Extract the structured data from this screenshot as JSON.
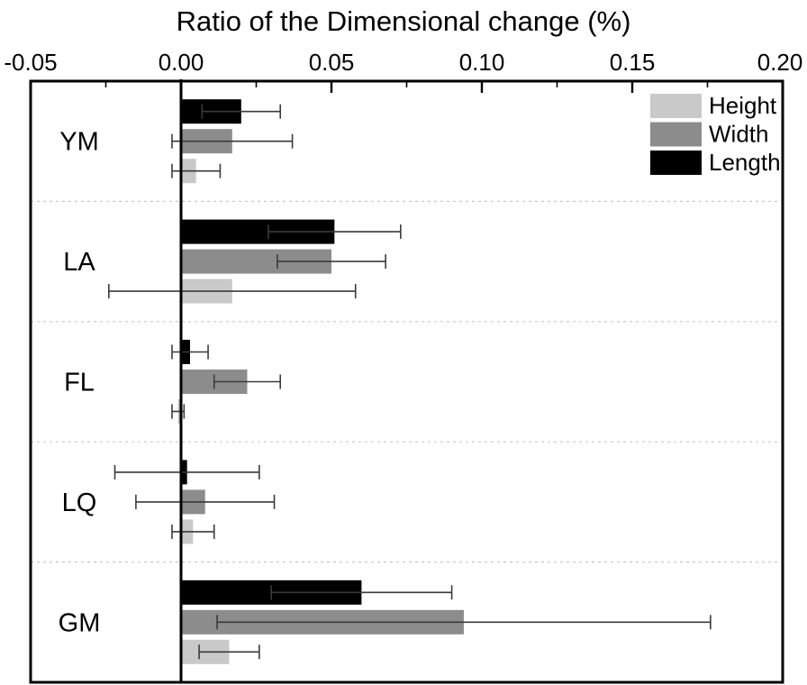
{
  "chart_data": {
    "type": "bar",
    "orientation": "horizontal",
    "title": "Ratio of the Dimensional change (%)",
    "categories": [
      "YM",
      "LA",
      "FL",
      "LQ",
      "GM"
    ],
    "series": [
      {
        "name": "Length",
        "color": "#000000",
        "values": [
          0.02,
          0.051,
          0.003,
          0.002,
          0.06
        ],
        "errors": [
          0.013,
          0.022,
          0.006,
          0.024,
          0.03
        ]
      },
      {
        "name": "Width",
        "color": "#8c8c8c",
        "values": [
          0.017,
          0.05,
          0.022,
          0.008,
          0.094
        ],
        "errors": [
          0.02,
          0.018,
          0.011,
          0.023,
          0.082
        ]
      },
      {
        "name": "Height",
        "color": "#c9c9c9",
        "values": [
          0.005,
          0.017,
          -0.001,
          0.004,
          0.016
        ],
        "errors": [
          0.008,
          0.041,
          0.002,
          0.007,
          0.01
        ]
      }
    ],
    "x_axis": {
      "position": "top",
      "range": [
        -0.05,
        0.2
      ],
      "tick_values": [
        -0.05,
        0.0,
        0.05,
        0.1,
        0.15,
        0.2
      ],
      "tick_labels": [
        "-0.05",
        "0.00",
        "0.05",
        "0.10",
        "0.15",
        "0.20"
      ],
      "minor_tick_values": [
        -0.025,
        0.025,
        0.075,
        0.125,
        0.175
      ]
    },
    "legend": {
      "position": "top-right",
      "entries": [
        "Height",
        "Width",
        "Length"
      ]
    },
    "style": {
      "error_bar_color": "#3a3a3a",
      "separator_color": "#c8c8c8",
      "frame_color": "#000000",
      "zero_line_color": "#000000"
    },
    "grid": "dashed horizontal separators between category bands"
  }
}
